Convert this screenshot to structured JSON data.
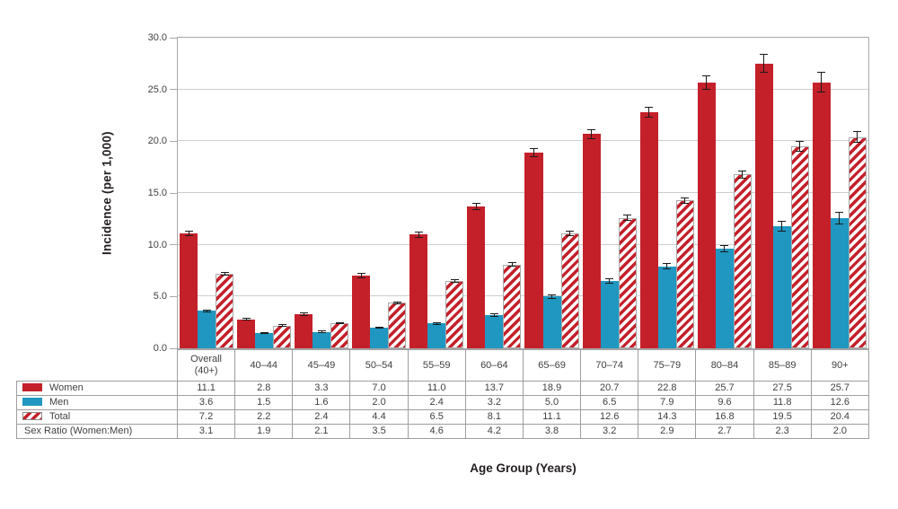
{
  "chart_data": {
    "type": "bar",
    "title": "",
    "ylabel": "Incidence (per 1,000)",
    "xlabel": "Age Group (Years)",
    "ylim": [
      0,
      30
    ],
    "ytick_values": [
      30,
      25,
      20,
      15,
      10,
      5,
      0
    ],
    "grid": "horizontal-only",
    "plot_border": true,
    "error_bars": true,
    "legend_position": "table-left-column",
    "categories": [
      "Overall (40+)",
      "40–44",
      "45–49",
      "50–54",
      "55–59",
      "60–64",
      "65–69",
      "70–74",
      "75–79",
      "80–84",
      "85–89",
      "90+"
    ],
    "series": [
      {
        "name": "Women",
        "style": "solid",
        "color": "#c4202a",
        "values": [
          11.1,
          2.8,
          3.3,
          7.0,
          11.0,
          13.7,
          18.9,
          20.7,
          22.8,
          25.7,
          27.5,
          25.7
        ],
        "errors": [
          0.3,
          0.15,
          0.15,
          0.25,
          0.3,
          0.35,
          0.45,
          0.5,
          0.55,
          0.7,
          0.9,
          1.0
        ]
      },
      {
        "name": "Men",
        "style": "solid",
        "color": "#1f97c1",
        "values": [
          3.6,
          1.5,
          1.6,
          2.0,
          2.4,
          3.2,
          5.0,
          6.5,
          7.9,
          9.6,
          11.8,
          12.6
        ],
        "errors": [
          0.15,
          0.1,
          0.1,
          0.1,
          0.15,
          0.15,
          0.2,
          0.25,
          0.3,
          0.35,
          0.5,
          0.6
        ]
      },
      {
        "name": "Total",
        "style": "hatched",
        "color": "#c4202a",
        "values": [
          7.2,
          2.2,
          2.4,
          4.4,
          6.5,
          8.1,
          11.1,
          12.6,
          14.3,
          16.8,
          19.5,
          20.4
        ],
        "errors": [
          0.2,
          0.1,
          0.1,
          0.15,
          0.2,
          0.2,
          0.25,
          0.3,
          0.3,
          0.4,
          0.5,
          0.55
        ]
      }
    ],
    "extra_rows": [
      {
        "name": "Sex Ratio (Women:Men)",
        "values": [
          3.1,
          1.9,
          2.1,
          3.5,
          4.6,
          4.2,
          3.8,
          3.2,
          2.9,
          2.7,
          2.3,
          2.0
        ]
      }
    ]
  },
  "colors": {
    "women": "#c4202a",
    "men": "#1f97c1",
    "gridline": "#cdcdcd",
    "axis": "#a8a8a8",
    "table_border": "#9e9e9e",
    "text": "#414042",
    "error_bar": "#1a1a1a",
    "hatch_background": "#ffffff"
  }
}
